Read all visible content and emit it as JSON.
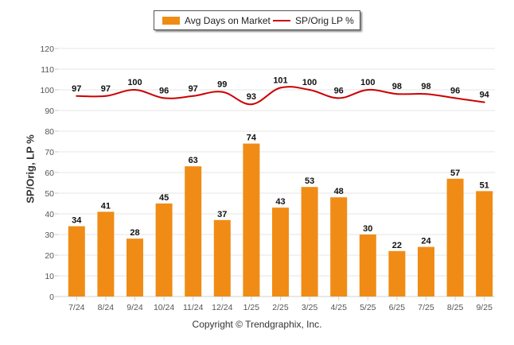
{
  "legend": {
    "bar_label": "Avg Days on Market",
    "line_label": "SP/Orig LP %"
  },
  "copyright": "Copyright © Trendgraphix, Inc.",
  "chart_data": {
    "type": "bar",
    "title": "",
    "xlabel": "",
    "ylabel": "SP/Orig, LP %",
    "ylim": [
      0,
      120
    ],
    "yticks": [
      0,
      10,
      20,
      30,
      40,
      50,
      60,
      70,
      80,
      90,
      100,
      110,
      120
    ],
    "grid": true,
    "legend_position": "top-center",
    "categories": [
      "7/24",
      "8/24",
      "9/24",
      "10/24",
      "11/24",
      "12/24",
      "1/25",
      "2/25",
      "3/25",
      "4/25",
      "5/25",
      "6/25",
      "7/25",
      "8/25",
      "9/25"
    ],
    "series": [
      {
        "name": "Avg Days on Market",
        "type": "bar",
        "color": "#f08c15",
        "values": [
          34,
          41,
          28,
          45,
          63,
          37,
          74,
          43,
          53,
          48,
          30,
          22,
          24,
          57,
          51
        ]
      },
      {
        "name": "SP/Orig LP %",
        "type": "line",
        "color": "#cc0000",
        "values": [
          97,
          97,
          100,
          96,
          97,
          99,
          93,
          101,
          100,
          96,
          100,
          98,
          98,
          96,
          94
        ]
      }
    ]
  }
}
